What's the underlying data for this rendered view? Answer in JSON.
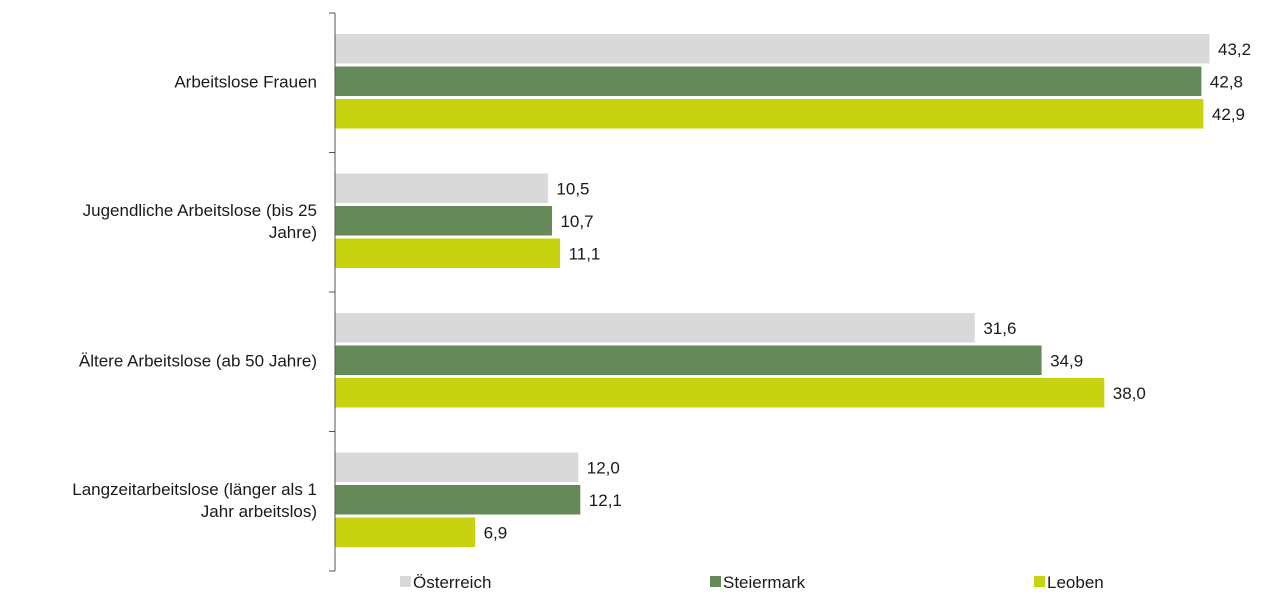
{
  "chart_data": {
    "type": "bar",
    "orientation": "horizontal",
    "categories": [
      [
        "Arbeitslose Frauen"
      ],
      [
        "Jugendliche Arbeitslose (bis 25",
        "Jahre)"
      ],
      [
        "Ältere Arbeitslose (ab 50 Jahre)"
      ],
      [
        "Langzeitarbeitslose (länger als 1",
        "Jahr arbeitslos)"
      ]
    ],
    "series": [
      {
        "name": "Österreich",
        "color": "#d9d9d9",
        "values": [
          43.2,
          10.5,
          31.6,
          12.0
        ],
        "labels": [
          "43,2",
          "10,5",
          "31,6",
          "12,0"
        ]
      },
      {
        "name": "Steiermark",
        "color": "#66895a",
        "values": [
          42.8,
          10.7,
          34.9,
          12.1
        ],
        "labels": [
          "42,8",
          "10,7",
          "34,9",
          "12,1"
        ]
      },
      {
        "name": "Leoben",
        "color": "#c8d30f",
        "values": [
          42.9,
          11.1,
          38.0,
          6.9
        ],
        "labels": [
          "42,9",
          "11,1",
          "38,0",
          "6,9"
        ]
      }
    ],
    "xlim": [
      0,
      43.2
    ],
    "grid": false,
    "legend_position": "bottom",
    "title": "",
    "xlabel": "",
    "ylabel": ""
  }
}
